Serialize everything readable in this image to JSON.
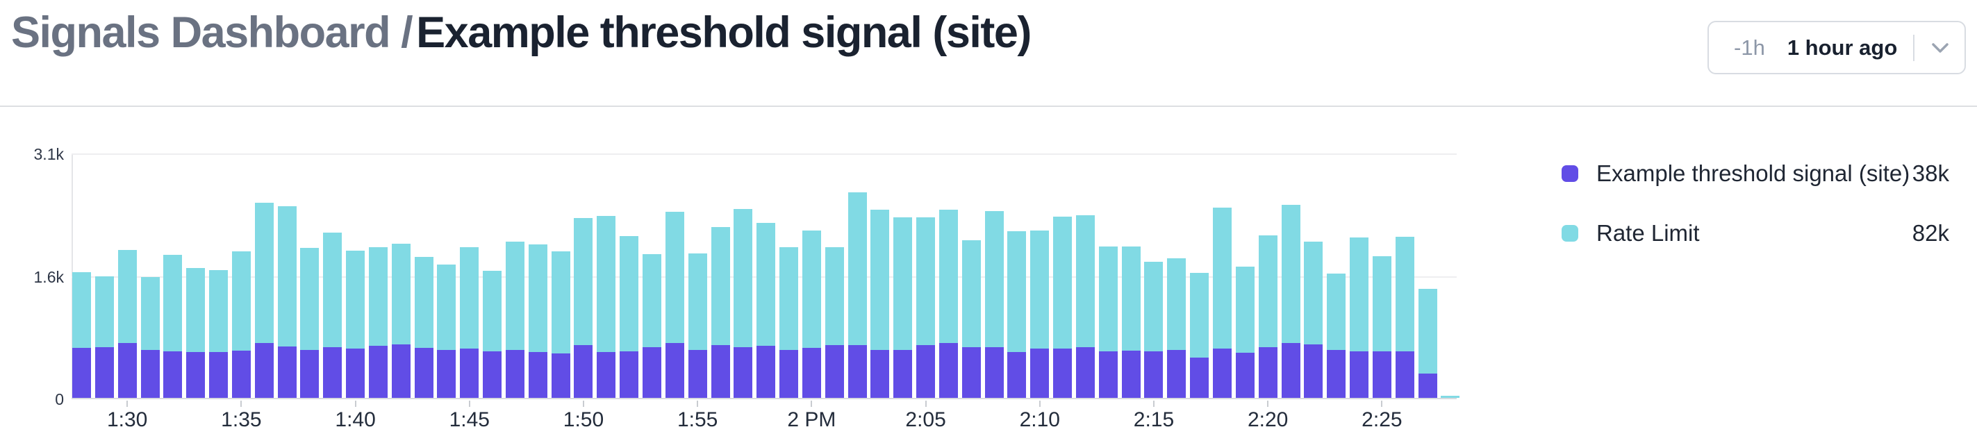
{
  "header": {
    "breadcrumb_parent": "Signals Dashboard /",
    "breadcrumb_current": "Example threshold signal (site)",
    "time_range": {
      "shortcut": "-1h",
      "label": "1 hour ago",
      "chevron_icon": "chevron-down-icon"
    }
  },
  "legend": {
    "items": [
      {
        "label": "Example threshold signal (site)",
        "value": "38k",
        "color": "#614de6"
      },
      {
        "label": "Rate Limit",
        "value": "82k",
        "color": "#81dae4"
      }
    ]
  },
  "chart_data": {
    "type": "bar",
    "stacked": true,
    "unit": "thousands (k)",
    "x": [
      "1:28",
      "1:29",
      "1:30",
      "1:31",
      "1:32",
      "1:33",
      "1:34",
      "1:35",
      "1:36",
      "1:37",
      "1:38",
      "1:39",
      "1:40",
      "1:41",
      "1:42",
      "1:43",
      "1:44",
      "1:45",
      "1:46",
      "1:47",
      "1:48",
      "1:49",
      "1:50",
      "1:51",
      "1:52",
      "1:53",
      "1:54",
      "1:55",
      "1:56",
      "1:57",
      "1:58",
      "1:59",
      "2:00",
      "2:01",
      "2:02",
      "2:03",
      "2:04",
      "2:05",
      "2:06",
      "2:07",
      "2:08",
      "2:09",
      "2:10",
      "2:11",
      "2:12",
      "2:13",
      "2:14",
      "2:15",
      "2:16",
      "2:17",
      "2:18",
      "2:19",
      "2:20",
      "2:21",
      "2:22",
      "2:23",
      "2:24",
      "2:25",
      "2:26",
      "2:27",
      "2:28"
    ],
    "series": [
      {
        "name": "Example threshold signal (site)",
        "color": "#614de6",
        "total_label": "38k",
        "values": [
          0.63,
          0.64,
          0.69,
          0.61,
          0.59,
          0.58,
          0.58,
          0.6,
          0.69,
          0.65,
          0.61,
          0.64,
          0.62,
          0.66,
          0.68,
          0.63,
          0.61,
          0.62,
          0.59,
          0.61,
          0.58,
          0.56,
          0.67,
          0.58,
          0.59,
          0.64,
          0.69,
          0.61,
          0.67,
          0.64,
          0.66,
          0.61,
          0.63,
          0.67,
          0.67,
          0.61,
          0.61,
          0.67,
          0.69,
          0.64,
          0.64,
          0.58,
          0.62,
          0.62,
          0.64,
          0.59,
          0.6,
          0.59,
          0.61,
          0.51,
          0.62,
          0.57,
          0.64,
          0.69,
          0.68,
          0.61,
          0.59,
          0.59,
          0.59,
          0.31,
          0
        ]
      },
      {
        "name": "Rate Limit",
        "color": "#81dae4",
        "total_label": "82k",
        "values": [
          0.96,
          0.9,
          1.18,
          0.92,
          1.22,
          1.06,
          1.04,
          1.26,
          1.77,
          1.77,
          1.29,
          1.45,
          1.24,
          1.25,
          1.27,
          1.15,
          1.08,
          1.28,
          1.02,
          1.37,
          1.36,
          1.29,
          1.61,
          1.72,
          1.46,
          1.18,
          1.66,
          1.22,
          1.49,
          1.75,
          1.55,
          1.3,
          1.48,
          1.24,
          1.93,
          1.77,
          1.68,
          1.62,
          1.69,
          1.35,
          1.72,
          1.53,
          1.49,
          1.67,
          1.67,
          1.33,
          1.32,
          1.13,
          1.16,
          1.07,
          1.78,
          1.09,
          1.41,
          1.75,
          1.3,
          0.97,
          1.44,
          1.2,
          1.45,
          1.07,
          0.03
        ]
      }
    ],
    "ylim": [
      0,
      3.1
    ],
    "yticks": [
      {
        "label": "3.1k",
        "value": 3.1
      },
      {
        "label": "1.6k",
        "value": 1.55
      },
      {
        "label": "0",
        "value": 0
      }
    ],
    "xticks": [
      {
        "index": 2,
        "label": "1:30"
      },
      {
        "index": 7,
        "label": "1:35"
      },
      {
        "index": 12,
        "label": "1:40"
      },
      {
        "index": 17,
        "label": "1:45"
      },
      {
        "index": 22,
        "label": "1:50"
      },
      {
        "index": 27,
        "label": "1:55"
      },
      {
        "index": 32,
        "label": "2 PM"
      },
      {
        "index": 37,
        "label": "2:05"
      },
      {
        "index": 42,
        "label": "2:10"
      },
      {
        "index": 47,
        "label": "2:15"
      },
      {
        "index": 52,
        "label": "2:20"
      },
      {
        "index": 57,
        "label": "2:25"
      }
    ],
    "grid": true,
    "legend_position": "right"
  }
}
